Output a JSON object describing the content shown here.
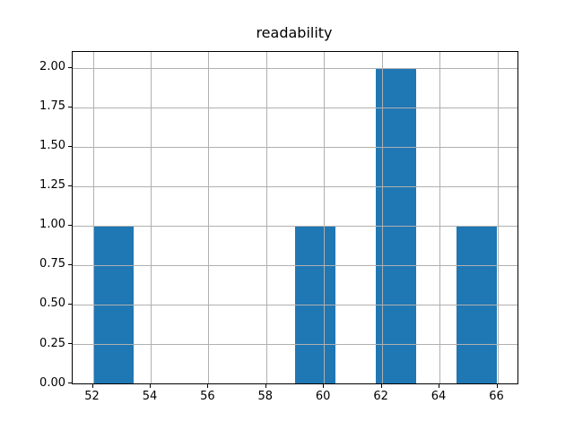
{
  "chart_data": {
    "type": "bar",
    "subtype": "histogram",
    "title": "readability",
    "xlabel": "",
    "ylabel": "",
    "bin_edges": [
      52,
      53.4,
      54.8,
      56.2,
      57.6,
      59,
      60.4,
      61.8,
      63.2,
      64.6,
      66
    ],
    "counts": [
      1,
      0,
      0,
      0,
      0,
      1,
      0,
      2,
      0,
      1
    ],
    "xticks": [
      52,
      54,
      56,
      58,
      60,
      62,
      64,
      66
    ],
    "xtick_labels": [
      "52",
      "54",
      "56",
      "58",
      "60",
      "62",
      "64",
      "66"
    ],
    "yticks": [
      0,
      0.25,
      0.5,
      0.75,
      1,
      1.25,
      1.5,
      1.75,
      2
    ],
    "ytick_labels": [
      "0.00",
      "0.25",
      "0.50",
      "0.75",
      "1.00",
      "1.25",
      "1.50",
      "1.75",
      "2.00"
    ],
    "xlim": [
      51.3,
      66.7
    ],
    "ylim": [
      0,
      2.1
    ],
    "grid": true,
    "grid_above_bars": true,
    "legend": null,
    "colors": {
      "bar": "#1f77b4",
      "grid": "#b0b0b0",
      "spine": "#000000",
      "background": "#ffffff",
      "text": "#000000"
    }
  }
}
